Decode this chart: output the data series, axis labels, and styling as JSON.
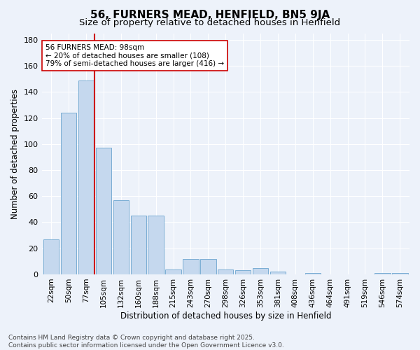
{
  "title": "56, FURNERS MEAD, HENFIELD, BN5 9JA",
  "subtitle": "Size of property relative to detached houses in Henfield",
  "xlabel": "Distribution of detached houses by size in Henfield",
  "ylabel": "Number of detached properties",
  "categories": [
    "22sqm",
    "50sqm",
    "77sqm",
    "105sqm",
    "132sqm",
    "160sqm",
    "188sqm",
    "215sqm",
    "243sqm",
    "270sqm",
    "298sqm",
    "326sqm",
    "353sqm",
    "381sqm",
    "408sqm",
    "436sqm",
    "464sqm",
    "491sqm",
    "519sqm",
    "546sqm",
    "574sqm"
  ],
  "values": [
    27,
    124,
    149,
    97,
    57,
    45,
    45,
    4,
    12,
    12,
    4,
    3,
    5,
    2,
    0,
    1,
    0,
    0,
    0,
    1,
    1
  ],
  "bar_color": "#c5d8ee",
  "bar_edge_color": "#7aadd4",
  "vline_position": 2.5,
  "vline_color": "#cc0000",
  "annotation_text": "56 FURNERS MEAD: 98sqm\n← 20% of detached houses are smaller (108)\n79% of semi-detached houses are larger (416) →",
  "annotation_box_color": "#ffffff",
  "annotation_box_edge": "#cc0000",
  "ylim": [
    0,
    185
  ],
  "yticks": [
    0,
    20,
    40,
    60,
    80,
    100,
    120,
    140,
    160,
    180
  ],
  "footer": "Contains HM Land Registry data © Crown copyright and database right 2025.\nContains public sector information licensed under the Open Government Licence v3.0.",
  "background_color": "#edf2fa",
  "grid_color": "#ffffff",
  "title_fontsize": 11,
  "subtitle_fontsize": 9.5,
  "axis_label_fontsize": 8.5,
  "tick_fontsize": 7.5,
  "footer_fontsize": 6.5,
  "annotation_fontsize": 7.5
}
